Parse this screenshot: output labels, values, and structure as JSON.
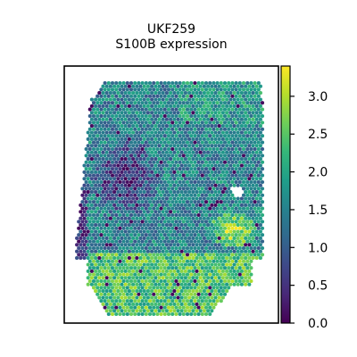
{
  "chart_data": {
    "type": "heatmap",
    "title": "UKF259",
    "subtitle": "S100B expression",
    "xlabel": "",
    "ylabel": "",
    "colormap": "viridis",
    "grid": false,
    "colorbar": {
      "range": [
        0.0,
        3.4
      ],
      "ticks": [
        "0.0",
        "0.5",
        "1.0",
        "1.5",
        "2.0",
        "2.5",
        "3.0"
      ]
    },
    "regions": [
      {
        "name": "upper-left tissue lobe",
        "mean_value": 0.5
      },
      {
        "name": "center band",
        "mean_value": 1.5
      },
      {
        "name": "upper-right region",
        "mean_value": 1.8
      },
      {
        "name": "right-middle cluster",
        "mean_value": 2.9
      },
      {
        "name": "lower region",
        "mean_value": 2.4
      }
    ]
  },
  "colors": {
    "viridis": [
      "#440154",
      "#482878",
      "#3e4989",
      "#31688e",
      "#26828e",
      "#1f9e89",
      "#35b779",
      "#6ece58",
      "#b5de2b",
      "#fde725"
    ]
  }
}
